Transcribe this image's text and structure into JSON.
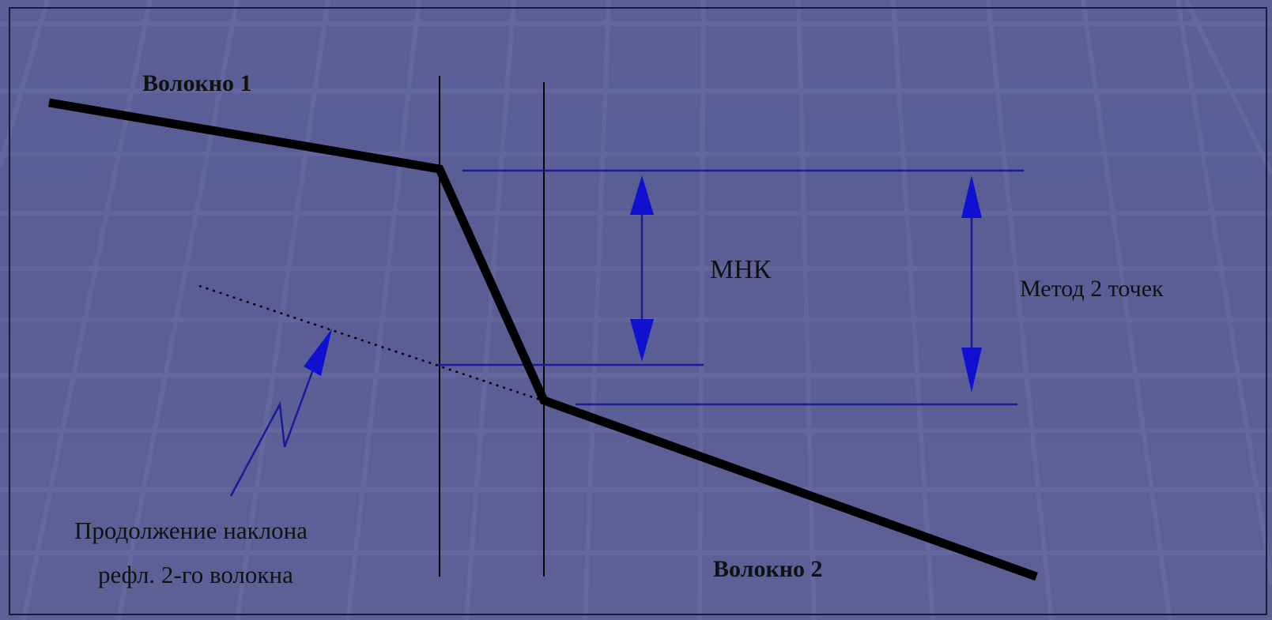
{
  "labels": {
    "fiber1": "Волокно 1",
    "fiber2": "Волокно 2",
    "mnk": "МНК",
    "two_point": "Метод 2 точек",
    "continuation_line1": "Продолжение наклона",
    "continuation_line2": "рефл. 2-го волокна"
  },
  "colors": {
    "background": "#5a5e95",
    "grid": "#6a6ea4",
    "trace": "#000000",
    "measure_lines": "#1a1a9a",
    "arrows": "#1010d0"
  }
}
